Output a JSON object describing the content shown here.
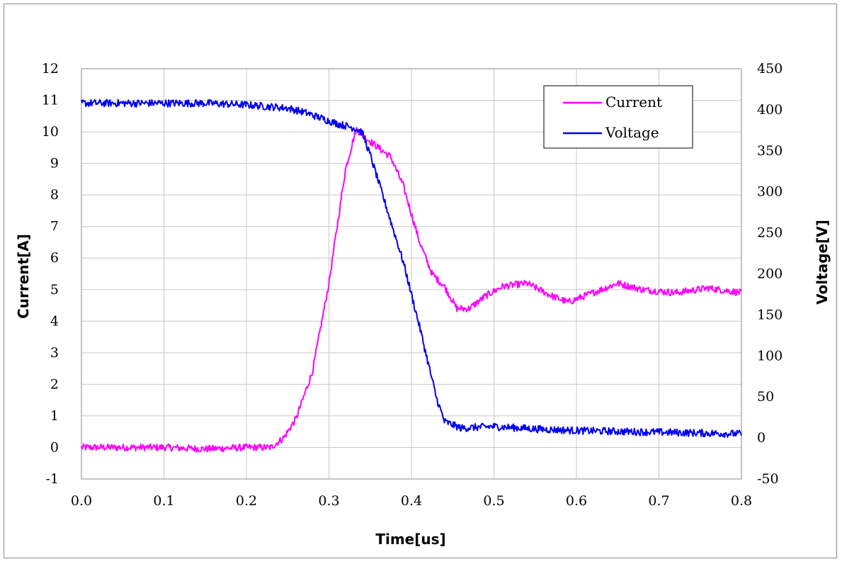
{
  "chart_data": {
    "type": "line",
    "title": "",
    "xlabel": "Time[us]",
    "ylabel_left": "Current[A]",
    "ylabel_right": "Voltage[V]",
    "xlim": [
      0.0,
      0.8
    ],
    "ylim_left": [
      -1,
      12
    ],
    "ylim_right": [
      -50,
      450
    ],
    "x_ticks": [
      "0.0",
      "0.1",
      "0.2",
      "0.3",
      "0.4",
      "0.5",
      "0.6",
      "0.7",
      "0.8"
    ],
    "y_left_ticks": [
      "-1",
      "0",
      "1",
      "2",
      "3",
      "4",
      "5",
      "6",
      "7",
      "8",
      "9",
      "10",
      "11",
      "12"
    ],
    "y_right_ticks": [
      "-50",
      "0",
      "50",
      "100",
      "150",
      "200",
      "250",
      "300",
      "350",
      "400",
      "450"
    ],
    "grid": true,
    "legend_position": "top-right",
    "series": [
      {
        "name": "Current",
        "axis": "left",
        "color": "#ff00ff",
        "x": [
          0.0,
          0.05,
          0.1,
          0.15,
          0.2,
          0.23,
          0.245,
          0.26,
          0.28,
          0.3,
          0.31,
          0.32,
          0.333,
          0.34,
          0.36,
          0.375,
          0.39,
          0.41,
          0.425,
          0.44,
          0.455,
          0.47,
          0.49,
          0.51,
          0.54,
          0.57,
          0.59,
          0.62,
          0.65,
          0.68,
          0.72,
          0.76,
          0.8
        ],
        "y": [
          0.0,
          0.0,
          0.0,
          -0.05,
          0.0,
          0.0,
          0.3,
          0.9,
          2.4,
          5.2,
          7.0,
          8.8,
          10.1,
          9.9,
          9.5,
          9.2,
          8.3,
          6.5,
          5.5,
          5.1,
          4.4,
          4.4,
          4.8,
          5.1,
          5.2,
          4.8,
          4.6,
          4.9,
          5.2,
          5.0,
          4.9,
          5.05,
          4.9
        ]
      },
      {
        "name": "Voltage",
        "axis": "right",
        "color": "#0000ee",
        "x": [
          0.0,
          0.05,
          0.1,
          0.15,
          0.2,
          0.25,
          0.27,
          0.29,
          0.31,
          0.33,
          0.34,
          0.35,
          0.37,
          0.39,
          0.41,
          0.43,
          0.44,
          0.46,
          0.5,
          0.55,
          0.6,
          0.65,
          0.7,
          0.75,
          0.8
        ],
        "y": [
          408,
          408,
          408,
          408,
          406,
          402,
          397,
          390,
          383,
          378,
          373,
          345,
          280,
          215,
          135,
          50,
          20,
          12,
          14,
          11,
          9,
          8,
          7,
          6,
          5
        ]
      }
    ]
  }
}
